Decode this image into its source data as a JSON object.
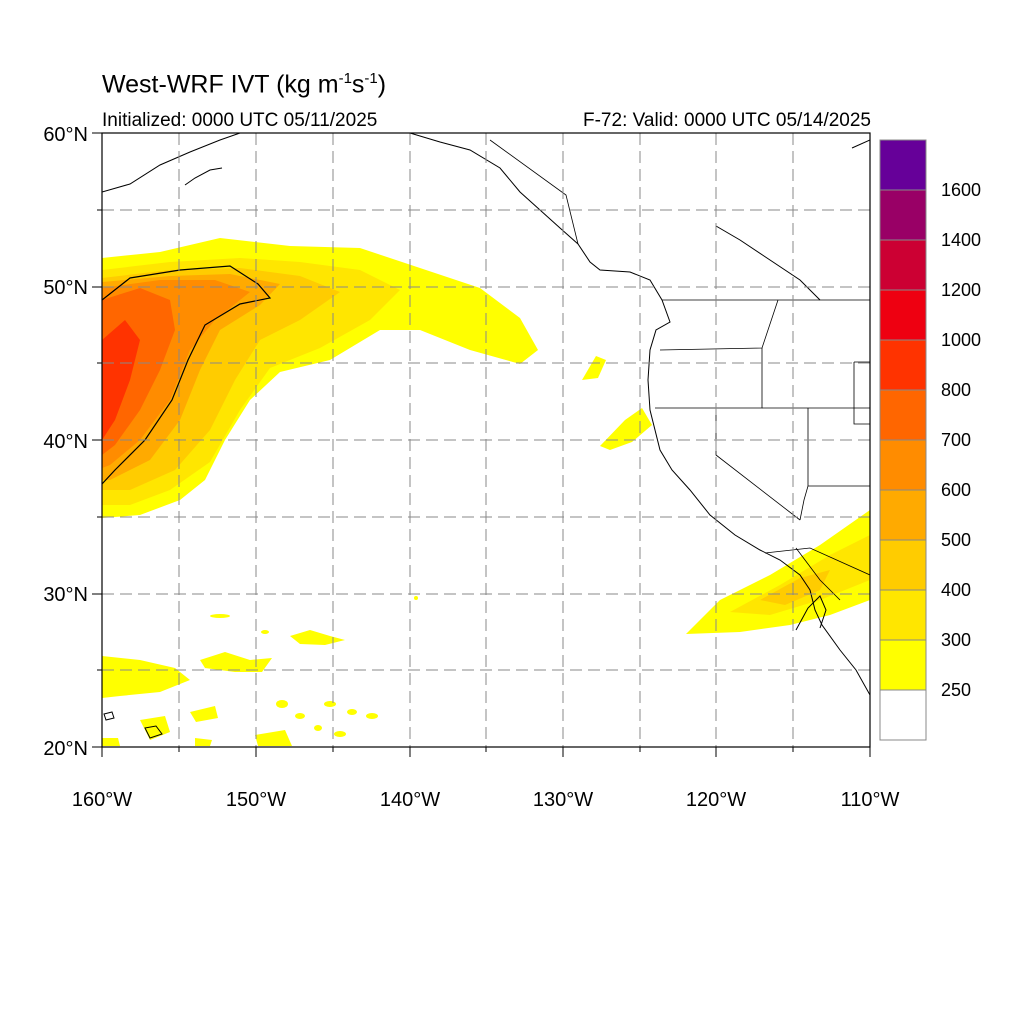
{
  "title": {
    "prefix": "West-WRF IVT (kg m",
    "exp1": "-1",
    "mid": "s",
    "exp2": "-1",
    "suffix": ")"
  },
  "subtitle_left": "Initialized: 0000 UTC 05/11/2025",
  "subtitle_right": "F-72: Valid: 0000 UTC 05/14/2025",
  "map": {
    "lon_range": [
      -160,
      -110
    ],
    "lat_range": [
      20,
      60
    ],
    "lon_ticks": [
      "160°W",
      "150°W",
      "140°W",
      "130°W",
      "120°W",
      "110°W"
    ],
    "lat_ticks": [
      "20°N",
      "30°N",
      "40°N",
      "50°N",
      "60°N"
    ],
    "gridlines": "dashed every 5°"
  },
  "colorbar": {
    "labels": [
      "250",
      "300",
      "400",
      "500",
      "600",
      "700",
      "800",
      "1000",
      "1200",
      "1400",
      "1600"
    ],
    "colors": [
      "#ffffff",
      "#ffff00",
      "#ffe600",
      "#ffcc00",
      "#ffaa00",
      "#ff8c00",
      "#ff6600",
      "#ff3300",
      "#ee0011",
      "#cc0033",
      "#990066",
      "#660099"
    ]
  }
}
